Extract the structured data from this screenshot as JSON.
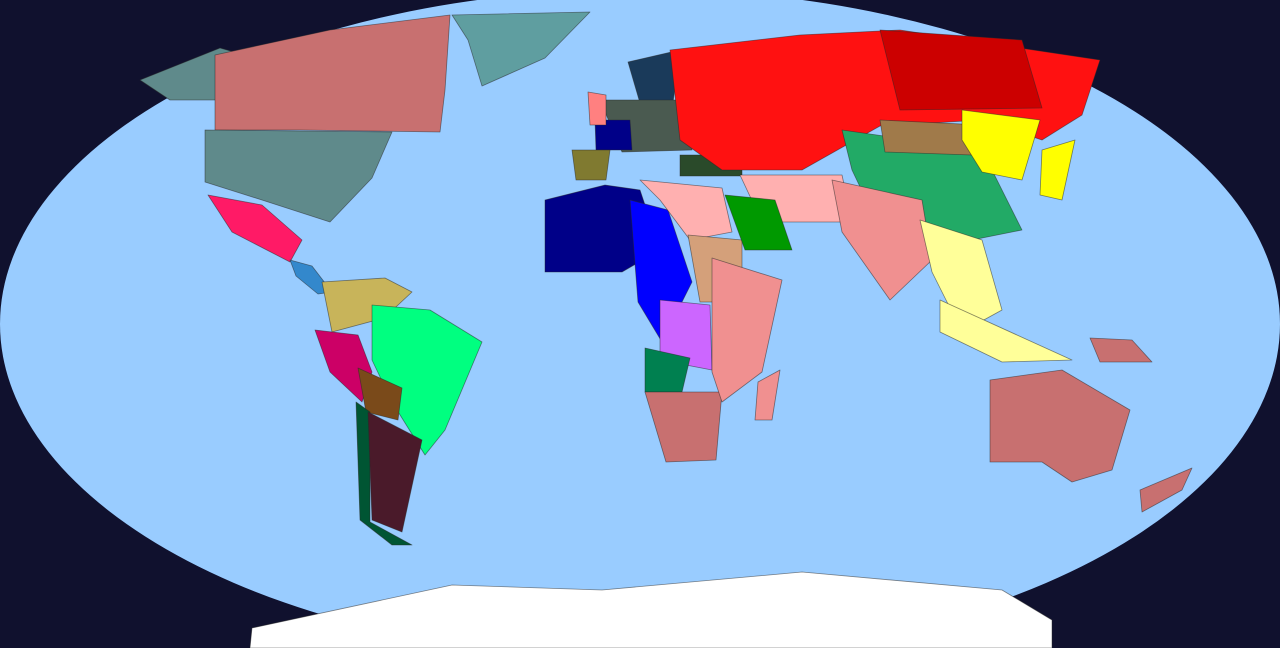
{
  "map": {
    "background_color": "#10112e",
    "ocean_color": "#99ccff",
    "regions": [
      {
        "id": "alaska-western-canada",
        "color": "#5f8a8b"
      },
      {
        "id": "canada",
        "color": "#c87070"
      },
      {
        "id": "usa",
        "color": "#5f8a8b"
      },
      {
        "id": "greenland",
        "color": "#5f9ea0"
      },
      {
        "id": "mexico",
        "color": "#ff1a66"
      },
      {
        "id": "central-america",
        "color": "#3388cc"
      },
      {
        "id": "gran-colombia",
        "color": "#c8b45a"
      },
      {
        "id": "brazil",
        "color": "#00ff80"
      },
      {
        "id": "peru",
        "color": "#cc0066"
      },
      {
        "id": "bolivia",
        "color": "#7a4a1a"
      },
      {
        "id": "chile",
        "color": "#005533"
      },
      {
        "id": "argentina",
        "color": "#4a1a2a"
      },
      {
        "id": "west-africa",
        "color": "#000088"
      },
      {
        "id": "central-africa-blue",
        "color": "#0000ff"
      },
      {
        "id": "egypt-libya",
        "color": "#ffb0b0"
      },
      {
        "id": "sudan",
        "color": "#d4a07a"
      },
      {
        "id": "congo",
        "color": "#cc66ff"
      },
      {
        "id": "angola",
        "color": "#008050"
      },
      {
        "id": "southern-africa",
        "color": "#c87070"
      },
      {
        "id": "east-africa",
        "color": "#f09090"
      },
      {
        "id": "madagascar",
        "color": "#f09090"
      },
      {
        "id": "scandinavia",
        "color": "#1a3a5a"
      },
      {
        "id": "central-europe",
        "color": "#4a5a50"
      },
      {
        "id": "france",
        "color": "#000088"
      },
      {
        "id": "iberia",
        "color": "#807a30"
      },
      {
        "id": "britain",
        "color": "#ff8080"
      },
      {
        "id": "turkey",
        "color": "#2a4a2a"
      },
      {
        "id": "russia",
        "color": "#ff1111"
      },
      {
        "id": "east-russia",
        "color": "#cc0000"
      },
      {
        "id": "middle-east",
        "color": "#ffb0b0"
      },
      {
        "id": "saudi-arabia",
        "color": "#009900"
      },
      {
        "id": "china",
        "color": "#22aa66"
      },
      {
        "id": "mongolia",
        "color": "#a07a4a"
      },
      {
        "id": "manchuria",
        "color": "#ffff00"
      },
      {
        "id": "japan",
        "color": "#ffff00"
      },
      {
        "id": "india",
        "color": "#f09090"
      },
      {
        "id": "southeast-asia",
        "color": "#ffff99"
      },
      {
        "id": "indonesia",
        "color": "#ffff99"
      },
      {
        "id": "australia",
        "color": "#c87070"
      },
      {
        "id": "new-zealand",
        "color": "#c87070"
      },
      {
        "id": "papua",
        "color": "#c87070"
      },
      {
        "id": "antarctica",
        "color": "#ffffff"
      }
    ]
  }
}
